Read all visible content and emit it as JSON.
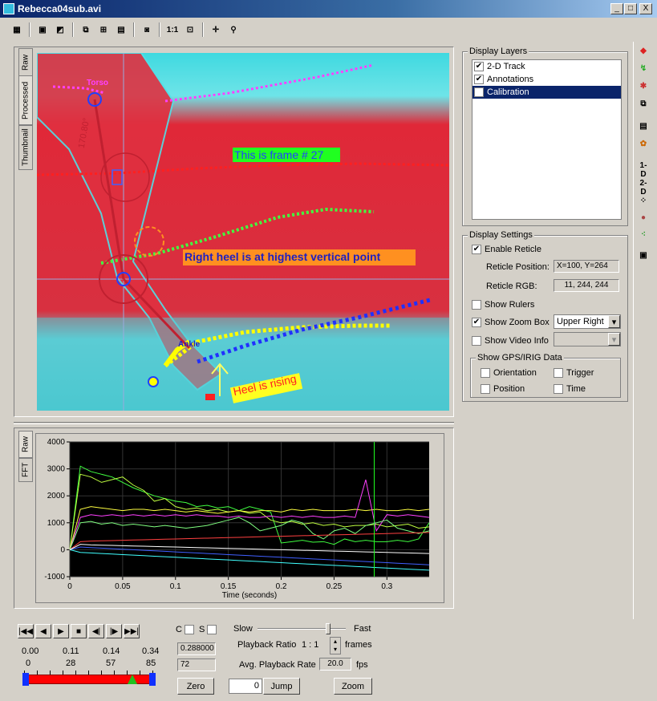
{
  "window": {
    "title": "Rebecca04sub.avi",
    "min": "_",
    "max": "□",
    "close": "X"
  },
  "video_tabs": [
    "Raw",
    "Processed",
    "Thumbnail"
  ],
  "graph_tabs": [
    "Raw",
    "FFT"
  ],
  "annotations": {
    "frame_label": "This is frame # 27",
    "heel_label": "Right heel is at highest vertical point",
    "rising_label": "Heel is rising",
    "torso": "Torso",
    "ankle": "Ankle",
    "angle": "170.80°"
  },
  "display_layers": {
    "title": "Display Layers",
    "items": [
      {
        "label": "2-D Track",
        "checked": true
      },
      {
        "label": "Annotations",
        "checked": true
      },
      {
        "label": "Calibration",
        "checked": true,
        "selected": true
      }
    ]
  },
  "display_settings": {
    "title": "Display Settings",
    "enable_reticle": "Enable Reticle",
    "reticle_position_label": "Reticle Position:",
    "reticle_position_value": "X=100, Y=264",
    "reticle_rgb_label": "Reticle RGB:",
    "reticle_rgb_value": "11, 244, 244",
    "show_rulers": "Show Rulers",
    "show_zoom_box": "Show Zoom Box",
    "zoom_box_position": "Upper Right",
    "show_video_info": "Show Video Info",
    "gps_title": "Show GPS/IRIG Data",
    "orientation": "Orientation",
    "trigger": "Trigger",
    "position": "Position",
    "time": "Time"
  },
  "right_toolbar": [
    "layers-icon",
    "track-icon",
    "marker-icon",
    "copy-icon",
    "list-icon",
    "palette-icon",
    "1-D",
    "2-D",
    "points-icon",
    "blob-icon",
    "dots-icon",
    "export-icon"
  ],
  "chart_data": {
    "type": "line",
    "xlabel": "Time (seconds)",
    "ylabel": "",
    "xlim": [
      0,
      0.34
    ],
    "ylim": [
      -1000,
      4000
    ],
    "xticks": [
      "0",
      "0.05",
      "0.1",
      "0.15",
      "0.2",
      "0.25",
      "0.3"
    ],
    "yticks": [
      "4000",
      "3000",
      "2000",
      "1000",
      "0",
      "-1000"
    ],
    "cursor_x": 0.288,
    "x": [
      0,
      0.01,
      0.02,
      0.03,
      0.04,
      0.05,
      0.06,
      0.07,
      0.08,
      0.09,
      0.1,
      0.11,
      0.12,
      0.13,
      0.14,
      0.15,
      0.16,
      0.17,
      0.18,
      0.19,
      0.2,
      0.21,
      0.22,
      0.23,
      0.24,
      0.25,
      0.26,
      0.27,
      0.28,
      0.29,
      0.3,
      0.31,
      0.32,
      0.33,
      0.34
    ],
    "series": [
      {
        "color": "#40ff40",
        "values": [
          0,
          3100,
          2900,
          2800,
          2700,
          2500,
          2300,
          2150,
          2000,
          1900,
          1800,
          1750,
          1600,
          1650,
          1550,
          1600,
          1450,
          1600,
          1500,
          1400,
          250,
          300,
          350,
          280,
          300,
          200,
          400,
          300,
          350,
          300,
          300,
          350,
          300,
          400,
          1000
        ]
      },
      {
        "color": "#c0ff40",
        "values": [
          0,
          2800,
          2700,
          2500,
          2600,
          2700,
          2400,
          2200,
          1800,
          1900,
          1600,
          1500,
          1550,
          1450,
          1500,
          1400,
          1450,
          1350,
          1400,
          1100,
          1000,
          1050,
          950,
          1000,
          900,
          950,
          850,
          900,
          900,
          950,
          850,
          900,
          950,
          800,
          850
        ]
      },
      {
        "color": "#ffff40",
        "values": [
          0,
          1500,
          1600,
          1550,
          1500,
          1450,
          1500,
          1500,
          1450,
          1500,
          1450,
          1400,
          1450,
          1400,
          1350,
          1400,
          1450,
          1400,
          1450,
          1450,
          1400,
          1500,
          1450,
          1500,
          1450,
          1450,
          1450,
          1500,
          1450,
          1500,
          1450,
          1450,
          1500,
          1450,
          1500
        ]
      },
      {
        "color": "#ff40ff",
        "values": [
          0,
          1200,
          1300,
          1250,
          1300,
          1250,
          1300,
          1250,
          1300,
          1250,
          1300,
          1250,
          1300,
          1250,
          1250,
          1200,
          1250,
          1200,
          1200,
          1250,
          1200,
          1250,
          1200,
          1250,
          1200,
          1200,
          1250,
          1200,
          2600,
          700,
          1300,
          1250,
          1300,
          1250,
          1200
        ]
      },
      {
        "color": "#80ff80",
        "values": [
          0,
          1000,
          1050,
          950,
          1000,
          900,
          950,
          900,
          850,
          900,
          850,
          800,
          850,
          900,
          1000,
          1100,
          1200,
          1000,
          700,
          800,
          900,
          1100,
          1000,
          600,
          400,
          700,
          800,
          600,
          900,
          1000,
          1100,
          800,
          700,
          600,
          700
        ]
      },
      {
        "color": "#ff4040",
        "values": [
          0,
          300,
          320,
          330,
          340,
          350,
          360,
          370,
          380,
          390,
          400,
          410,
          420,
          430,
          440,
          450,
          460,
          470,
          480,
          490,
          500,
          510,
          520,
          530,
          540,
          550,
          560,
          570,
          580,
          590,
          600,
          610,
          620,
          630,
          640
        ]
      },
      {
        "color": "#4060ff",
        "values": [
          0,
          100,
          80,
          60,
          40,
          20,
          0,
          -20,
          -40,
          -60,
          -80,
          -100,
          -120,
          -140,
          -160,
          -180,
          -200,
          -220,
          -240,
          -260,
          -280,
          -300,
          -320,
          -340,
          -360,
          -380,
          -400,
          -420,
          -440,
          -460,
          -480,
          -500,
          -520,
          -540,
          -560
        ]
      },
      {
        "color": "#40ffff",
        "values": [
          0,
          -100,
          -120,
          -140,
          -160,
          -180,
          -200,
          -220,
          -240,
          -260,
          -280,
          -300,
          -320,
          -340,
          -360,
          -380,
          -400,
          -420,
          -440,
          -460,
          -480,
          -500,
          -520,
          -540,
          -560,
          -580,
          -600,
          -620,
          -640,
          -660,
          -680,
          -700,
          -720,
          -740,
          -760
        ]
      },
      {
        "color": "#ffffff",
        "values": [
          0,
          200,
          180,
          170,
          160,
          150,
          140,
          130,
          120,
          110,
          100,
          90,
          80,
          70,
          60,
          50,
          40,
          30,
          20,
          10,
          0,
          -10,
          -20,
          -30,
          -40,
          -50,
          -60,
          -70,
          -80,
          -90,
          -100,
          -110,
          -120,
          -130,
          -140
        ]
      }
    ]
  },
  "transport": {
    "times": [
      "0.00",
      "0.11",
      "0.14",
      "0.34"
    ],
    "frames": [
      "0",
      "28",
      "57",
      "85"
    ],
    "c_label": "C",
    "s_label": "S",
    "time_value": "0.288000",
    "frame_value": "72",
    "zero_button": "Zero",
    "jump_value": "0",
    "jump_button": "Jump",
    "slow": "Slow",
    "fast": "Fast",
    "playback_ratio_label": "Playback Ratio",
    "playback_ratio_value": "1 : 1",
    "frames_label": "frames",
    "avg_rate_label": "Avg. Playback Rate",
    "avg_rate_value": "20.0",
    "fps": "fps",
    "zoom_button": "Zoom",
    "slider_position": 0.85,
    "frame_position": 0.85
  }
}
